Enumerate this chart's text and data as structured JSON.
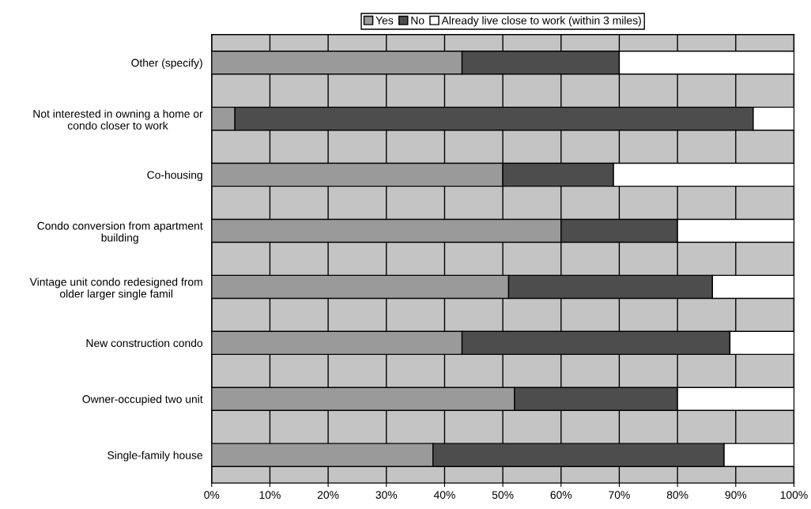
{
  "chart_data": {
    "type": "bar",
    "orientation": "horizontal",
    "stacked": true,
    "categories": [
      "Other (specify)",
      "Not interested in owning a home or\ncondo closer to work",
      "Co-housing",
      "Condo conversion from apartment\nbuilding",
      "Vintage unit condo redesigned from\nolder larger single famil",
      "New construction condo",
      "Owner-occupied two unit",
      "Single-family house"
    ],
    "series": [
      {
        "name": "Yes",
        "color": "#9a9a9a",
        "values": [
          43,
          4,
          50,
          60,
          51,
          43,
          52,
          38
        ]
      },
      {
        "name": "No",
        "color": "#4d4d4d",
        "values": [
          27,
          89,
          19,
          20,
          35,
          46,
          28,
          50
        ]
      },
      {
        "name": "Already live close to work (within 3 miles)",
        "color": "#ffffff",
        "values": [
          30,
          7,
          31,
          20,
          14,
          11,
          20,
          12
        ]
      }
    ],
    "xlim": [
      0,
      100
    ],
    "xticks": [
      {
        "value": 0,
        "label": "0%"
      },
      {
        "value": 10,
        "label": "10%"
      },
      {
        "value": 20,
        "label": "20%"
      },
      {
        "value": 30,
        "label": "30%"
      },
      {
        "value": 40,
        "label": "40%"
      },
      {
        "value": 50,
        "label": "50%"
      },
      {
        "value": 60,
        "label": "60%"
      },
      {
        "value": 70,
        "label": "70%"
      },
      {
        "value": 80,
        "label": "80%"
      },
      {
        "value": 90,
        "label": "90%"
      },
      {
        "value": 100,
        "label": "100%"
      }
    ],
    "grid": "x",
    "legend": "top"
  }
}
